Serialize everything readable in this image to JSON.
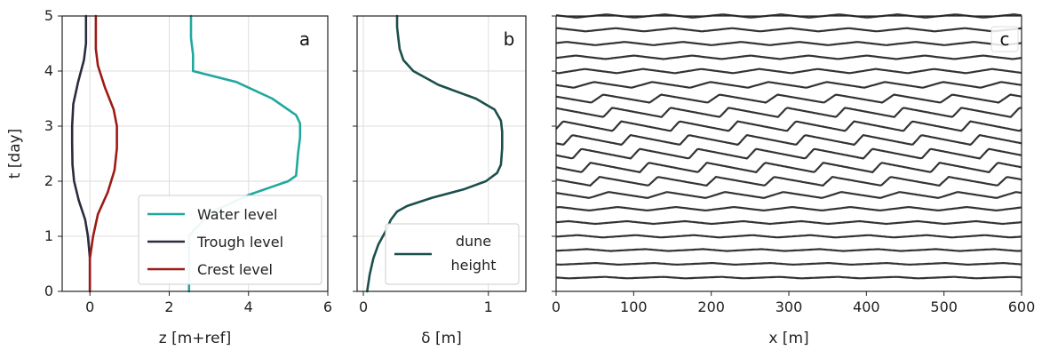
{
  "chart_data": [
    {
      "type": "line",
      "panel_label": "a",
      "xlabel": "z [m+ref]",
      "ylabel": "t [day]",
      "xlim": [
        -0.7,
        6
      ],
      "ylim": [
        0,
        5
      ],
      "xticks": [
        "0",
        "2",
        "4",
        "6"
      ],
      "yticks": [
        "0",
        "1",
        "2",
        "3",
        "4",
        "5"
      ],
      "grid": true,
      "legend_position": "lower-right",
      "series": [
        {
          "name": "Water level",
          "color": "#20a89e",
          "x": [
            2.5,
            2.5,
            2.5,
            2.5,
            2.6,
            3.1,
            4.0,
            4.6,
            5.0,
            5.2,
            5.25,
            5.3,
            5.3,
            5.3,
            5.2,
            4.6,
            3.7,
            2.6,
            2.6,
            2.55,
            2.55
          ],
          "y": [
            0,
            0.5,
            0.9,
            1.0,
            1.1,
            1.45,
            1.75,
            1.9,
            2.0,
            2.1,
            2.5,
            2.8,
            3.0,
            3.05,
            3.2,
            3.5,
            3.8,
            4.0,
            4.3,
            4.6,
            5.0
          ]
        },
        {
          "name": "Trough level",
          "color": "#2a2c3e",
          "x": [
            0.0,
            0.0,
            -0.05,
            -0.12,
            -0.28,
            -0.4,
            -0.44,
            -0.45,
            -0.45,
            -0.42,
            -0.3,
            -0.15,
            -0.1,
            -0.1,
            -0.1
          ],
          "y": [
            0,
            0.6,
            1.0,
            1.3,
            1.65,
            2.0,
            2.3,
            2.7,
            3.0,
            3.4,
            3.8,
            4.2,
            4.5,
            4.8,
            5.0
          ]
        },
        {
          "name": "Crest level",
          "color": "#9e1a16",
          "x": [
            0.0,
            0.0,
            0.08,
            0.2,
            0.45,
            0.62,
            0.68,
            0.68,
            0.6,
            0.38,
            0.2,
            0.15,
            0.15,
            0.15
          ],
          "y": [
            0,
            0.6,
            1.0,
            1.4,
            1.8,
            2.2,
            2.6,
            3.0,
            3.3,
            3.7,
            4.1,
            4.4,
            4.8,
            5.0
          ]
        }
      ]
    },
    {
      "type": "line",
      "panel_label": "b",
      "xlabel": "δ [m]",
      "xlim": [
        -0.05,
        1.3
      ],
      "ylim": [
        0,
        5
      ],
      "xticks": [
        "0",
        "1"
      ],
      "grid": true,
      "legend_position": "lower-right",
      "series": [
        {
          "name": "dune height",
          "legend_lines": [
            "dune",
            "height"
          ],
          "color": "#1b4f4c",
          "x": [
            0.03,
            0.05,
            0.08,
            0.12,
            0.18,
            0.22,
            0.27,
            0.35,
            0.55,
            0.8,
            0.98,
            1.07,
            1.1,
            1.11,
            1.11,
            1.1,
            1.05,
            0.9,
            0.6,
            0.4,
            0.32,
            0.29,
            0.28,
            0.27,
            0.27
          ],
          "y": [
            0,
            0.3,
            0.6,
            0.85,
            1.1,
            1.3,
            1.45,
            1.55,
            1.7,
            1.85,
            2.0,
            2.15,
            2.3,
            2.6,
            2.9,
            3.1,
            3.3,
            3.5,
            3.75,
            4.0,
            4.2,
            4.4,
            4.6,
            4.8,
            5.0
          ]
        }
      ]
    },
    {
      "type": "line",
      "panel_label": "c",
      "xlabel": "x [m]",
      "xlim": [
        0,
        600
      ],
      "ylim": [
        0,
        5
      ],
      "xticks": [
        "0",
        "100",
        "200",
        "300",
        "400",
        "500",
        "600"
      ],
      "grid": false,
      "color": "#333333",
      "profile_times": [
        0.25,
        0.5,
        0.75,
        1.0,
        1.25,
        1.5,
        1.75,
        2.0,
        2.25,
        2.5,
        2.75,
        3.0,
        3.25,
        3.5,
        3.75,
        4.0,
        4.25,
        4.5,
        4.75,
        5.0
      ],
      "dune_wavelength": 75
    }
  ],
  "colors": {
    "water": "#20a89e",
    "trough": "#2a2c3e",
    "crest": "#9e1a16",
    "dune_height": "#1b4f4c",
    "profile": "#333333",
    "grid": "#dddddd"
  }
}
